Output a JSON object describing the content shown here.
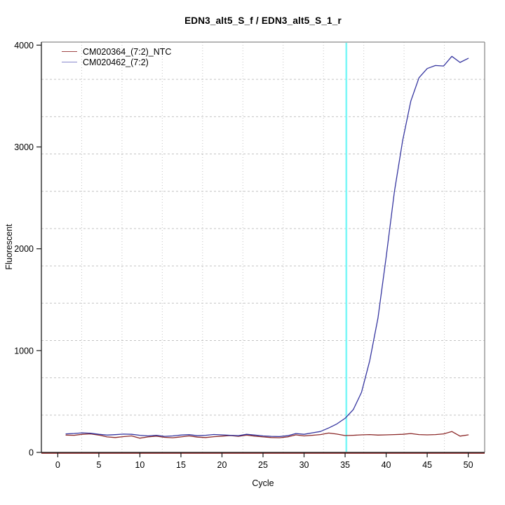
{
  "title": "EDN3_alt5_S_f / EDN3_alt5_S_1_r",
  "chart_data": {
    "type": "line",
    "title": "EDN3_alt5_S_f / EDN3_alt5_S_1_r",
    "xlabel": "Cycle",
    "ylabel": "Fluorescent",
    "xlim": [
      -2,
      52
    ],
    "ylim": [
      0,
      4030
    ],
    "x_ticks": [
      0,
      5,
      10,
      15,
      20,
      25,
      30,
      35,
      40,
      45,
      50
    ],
    "y_ticks": [
      0,
      1000,
      2000,
      3000,
      4000
    ],
    "grid": {
      "on": true,
      "n_cells": 11,
      "color": "#c4c4c4"
    },
    "threshold_line": {
      "x": 35.15,
      "color": "#7df7f7"
    },
    "baseline": {
      "y": 0,
      "color": "#8b2323"
    },
    "legend": {
      "position": "top-left",
      "entries": [
        {
          "label": "CM020364_(7:2)_NTC",
          "color": "#a04848"
        },
        {
          "label": "CM020462_(7:2)",
          "color": "#8888cc"
        }
      ]
    },
    "x": [
      1,
      2,
      3,
      4,
      5,
      6,
      7,
      8,
      9,
      10,
      11,
      12,
      13,
      14,
      15,
      16,
      17,
      18,
      19,
      20,
      21,
      22,
      23,
      24,
      25,
      26,
      27,
      28,
      29,
      30,
      31,
      32,
      33,
      34,
      35,
      36,
      37,
      38,
      39,
      40,
      41,
      42,
      43,
      44,
      45,
      46,
      47,
      48,
      49,
      50
    ],
    "series": [
      {
        "name": "CM020364_(7:2)_NTC",
        "color": "#8b2828",
        "values": [
          170,
          168,
          178,
          182,
          170,
          152,
          146,
          155,
          162,
          140,
          152,
          160,
          148,
          144,
          152,
          162,
          150,
          146,
          154,
          160,
          165,
          158,
          170,
          160,
          152,
          146,
          144,
          152,
          172,
          162,
          168,
          175,
          190,
          180,
          165,
          168,
          172,
          175,
          170,
          172,
          175,
          178,
          185,
          175,
          172,
          175,
          182,
          205,
          160,
          172
        ]
      },
      {
        "name": "CM020462_(7:2)",
        "color": "#3636a0",
        "values": [
          182,
          186,
          192,
          188,
          178,
          170,
          174,
          180,
          178,
          168,
          162,
          168,
          158,
          162,
          170,
          174,
          164,
          168,
          176,
          172,
          168,
          164,
          178,
          170,
          162,
          158,
          156,
          164,
          185,
          178,
          192,
          205,
          240,
          280,
          335,
          420,
          590,
          900,
          1320,
          1920,
          2560,
          3060,
          3450,
          3680,
          3770,
          3800,
          3795,
          3890,
          3830,
          3870
        ]
      }
    ]
  }
}
